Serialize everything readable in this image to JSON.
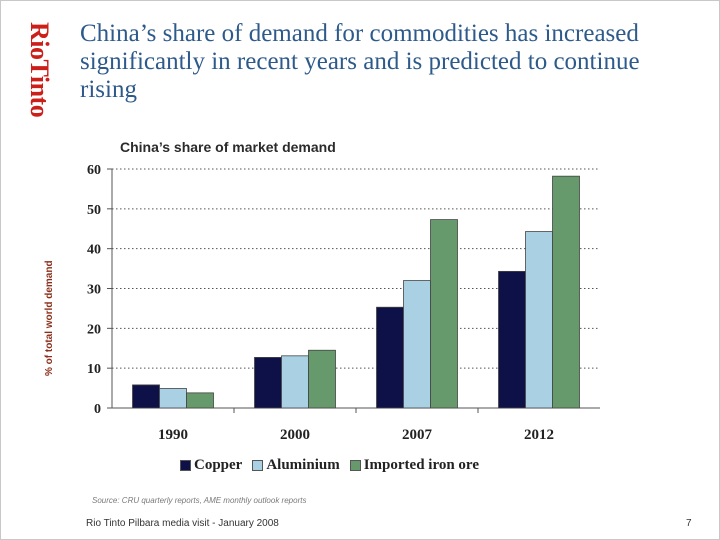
{
  "brand": "RioTinto",
  "title": "China’s share of demand for commodities has increased significantly in recent years and is predicted to continue rising",
  "source": "Source: CRU quarterly reports, AME monthly outlook reports",
  "footer": "Rio Tinto Pilbara media visit - January 2008",
  "page_number": "7",
  "colors": {
    "copper": "#0e1147",
    "aluminium": "#a9d1e3",
    "iron_ore": "#66996b",
    "title": "#2d5a8a",
    "brand": "#cc1f1a"
  },
  "chart_data": {
    "type": "bar",
    "title": "China’s share of market demand",
    "xlabel": "",
    "ylabel": "% of total world demand",
    "categories": [
      "1990",
      "2000",
      "2007",
      "2012"
    ],
    "ylim": [
      0,
      60
    ],
    "yticks": [
      0,
      10,
      20,
      30,
      40,
      50,
      60
    ],
    "grid": true,
    "legend_position": "bottom",
    "series": [
      {
        "name": "Copper",
        "color": "#0e1147",
        "values": [
          5.8,
          12.7,
          25.3,
          34.3
        ]
      },
      {
        "name": "Aluminium",
        "color": "#a9d1e3",
        "values": [
          4.9,
          13.1,
          32.0,
          44.3
        ]
      },
      {
        "name": "Imported iron ore",
        "color": "#66996b",
        "values": [
          3.8,
          14.5,
          47.3,
          58.2
        ]
      }
    ]
  }
}
